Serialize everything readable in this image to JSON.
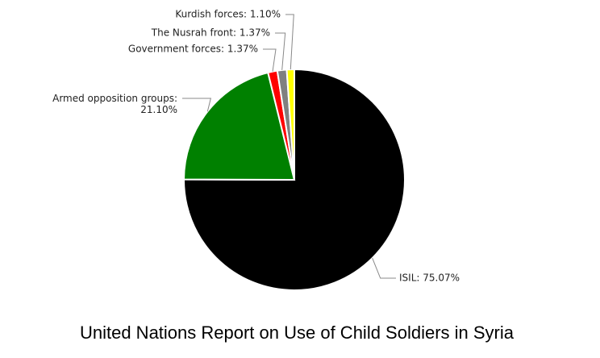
{
  "chart_data": {
    "type": "pie",
    "title": "United Nations Report on Use of Child Soldiers in Syria",
    "values": [
      75.07,
      21.1,
      1.37,
      1.37,
      1.1
    ],
    "value_labels": [
      "ISIL: 75.07%",
      "Armed opposition groups: 21.10%",
      "Government forces: 1.37%",
      "The Nusrah front: 1.37%",
      "Kurdish forces: 1.10%"
    ],
    "colors": [
      "#000000",
      "#008000",
      "#ff0000",
      "#808080",
      "#ffff00"
    ]
  }
}
